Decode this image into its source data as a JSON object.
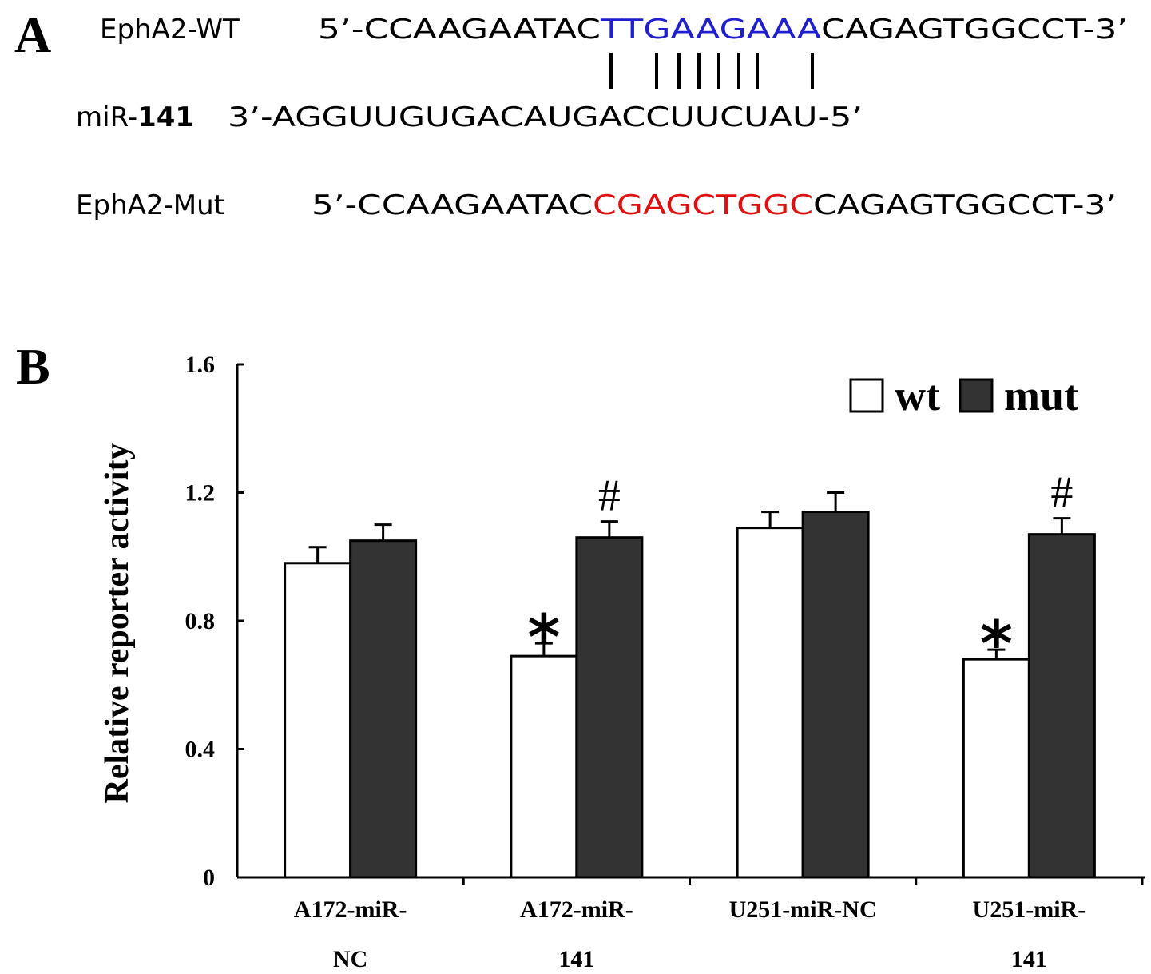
{
  "panel_a": {
    "label": "A",
    "wt": {
      "name": "EphA2-WT",
      "prefix": "5’-CCAAGAATAC",
      "highlight": "TTGAAGAAA",
      "suffix": "CAGAGTGGCCT-3’"
    },
    "mirna": {
      "name": "miR-",
      "name_number": "141",
      "sequence": "3’-AGGUUGUGACAUGACCUUCUAU-5’"
    },
    "mut": {
      "name": "EphA2-Mut",
      "prefix": "5’-CCAAGAATAC",
      "highlight": "CGAGCTGGC",
      "suffix": "CAGAGTGGCCT-3’"
    }
  },
  "chart_data": {
    "type": "bar",
    "panel_label": "B",
    "y_label": "Relative reporter activity",
    "categories": [
      [
        "A172-miR-",
        "NC"
      ],
      [
        "A172-miR-",
        "141"
      ],
      [
        "U251-miR-NC"
      ],
      [
        "U251-miR-",
        "141"
      ]
    ],
    "series": [
      {
        "name": "wt",
        "color": "#ffffff",
        "values": [
          0.98,
          0.69,
          1.09,
          0.68
        ],
        "errors": [
          0.05,
          0.04,
          0.05,
          0.03
        ],
        "markers": [
          null,
          "*",
          null,
          "*"
        ]
      },
      {
        "name": "mut",
        "color": "#333333",
        "values": [
          1.05,
          1.06,
          1.14,
          1.07
        ],
        "errors": [
          0.05,
          0.05,
          0.06,
          0.05
        ],
        "markers": [
          null,
          "#",
          null,
          "#"
        ]
      }
    ],
    "ylim": [
      0,
      1.6
    ],
    "yticks": [
      {
        "value": 0,
        "label": "0"
      },
      {
        "value": 0.4,
        "label": "0.4"
      },
      {
        "value": 0.8,
        "label": "0.8"
      },
      {
        "value": 1.2,
        "label": "1.2"
      },
      {
        "value": 1.6,
        "label": "1.6"
      }
    ],
    "legend": "upper right"
  }
}
